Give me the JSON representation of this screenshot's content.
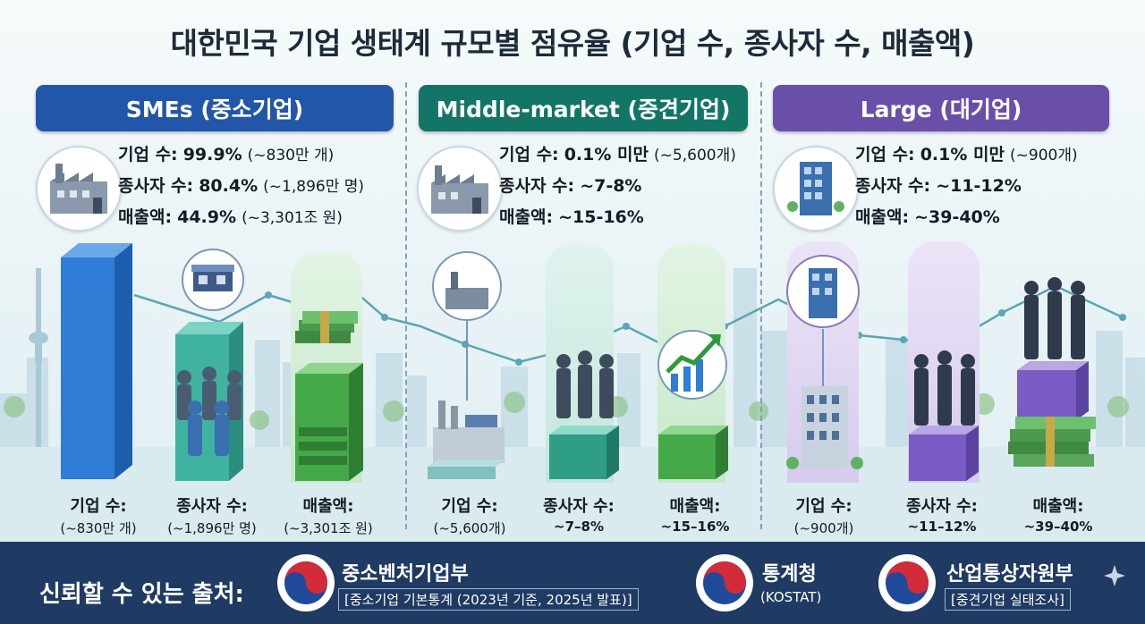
{
  "title": "대한민국 기업 생태계 규모별 점유율 (기업 수, 종사자 수, 매출액)",
  "sections": [
    {
      "header": "SMEs (중소기업)",
      "color": "#2256a8",
      "stats": [
        {
          "key": "기업 수:",
          "value": "99.9%",
          "note": "(~830만 개)"
        },
        {
          "key": "종사자 수:",
          "value": "80.4%",
          "note": "(~1,896만 명)"
        },
        {
          "key": "매출액:",
          "value": "44.9%",
          "note": "(~3,301조 원)"
        }
      ],
      "bars": [
        {
          "label": "기업 수:",
          "sub": "(~830만 개)"
        },
        {
          "label": "종사자 수:",
          "sub": "(~1,896만 명)"
        },
        {
          "label": "매출액:",
          "sub": "(~3,301조 원)"
        }
      ]
    },
    {
      "header": "Middle-market (중견기업)",
      "color": "#127566",
      "stats": [
        {
          "key": "기업 수:",
          "value": "0.1% 미만",
          "note": "(~5,600개)"
        },
        {
          "key": "종사자 수:",
          "value": "~7-8%",
          "note": ""
        },
        {
          "key": "매출액:",
          "value": "~15-16%",
          "note": ""
        }
      ],
      "bars": [
        {
          "label": "기업 수:",
          "sub": "(~5,600개)"
        },
        {
          "label": "종사자 수:",
          "sub": "~7–8%"
        },
        {
          "label": "매출액:",
          "sub": "~15–16%"
        }
      ]
    },
    {
      "header": "Large (대기업)",
      "color": "#6a4fa8",
      "stats": [
        {
          "key": "기업 수:",
          "value": "0.1% 미만",
          "note": "(~900개)"
        },
        {
          "key": "종사자 수:",
          "value": "~11-12%",
          "note": ""
        },
        {
          "key": "매출액:",
          "value": "~39-40%",
          "note": ""
        }
      ],
      "bars": [
        {
          "label": "기업 수:",
          "sub": "(~900개)"
        },
        {
          "label": "종사자 수:",
          "sub": "~11–12%"
        },
        {
          "label": "매출액:",
          "sub": "~39–40%"
        }
      ]
    }
  ],
  "footer": {
    "label": "신뢰할 수 있는 출처:",
    "sources": [
      {
        "name": "중소벤처기업부",
        "sub": "[중소기업 기본통계 (2023년 기준, 2025년 발표)]"
      },
      {
        "name": "통계청",
        "sub": "(KOSTAT)"
      },
      {
        "name": "산업통상자원부",
        "sub": "[중견기업 실태조사]"
      }
    ]
  },
  "icons": {
    "sme": "factory-icon",
    "middle": "factory-icon",
    "large": "office-building-icon",
    "people": "people-icon",
    "money": "money-stack-icon",
    "growth": "growth-chart-icon",
    "seal": "korea-government-seal-icon",
    "sparkle": "sparkle-icon"
  }
}
